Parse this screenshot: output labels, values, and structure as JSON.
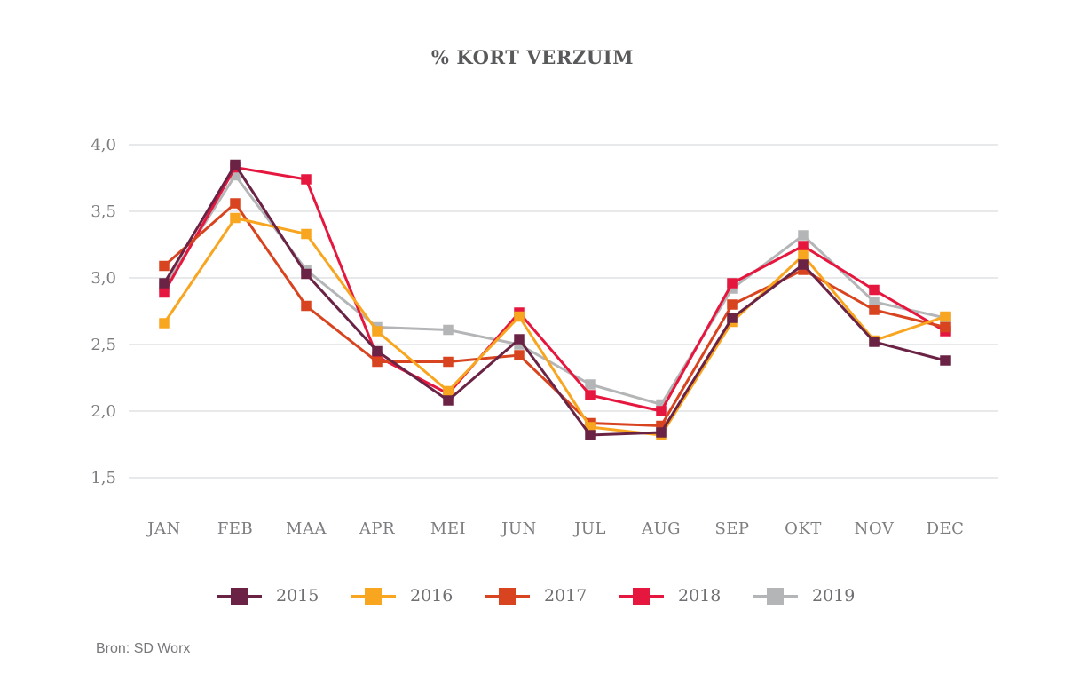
{
  "title": "% KORT VERZUIM",
  "source": "Bron: SD Worx",
  "colors": {
    "title_text": "#58595b",
    "axis_label": "#7c7d80",
    "gridline": "#d1d3d4",
    "legend_label": "#6f7073",
    "source_text": "#77787b",
    "background": "#ffffff"
  },
  "chart_data": {
    "type": "line",
    "title": "% KORT VERZUIM",
    "xlabel": "",
    "ylabel": "",
    "grid": "horizontal",
    "legend_position": "bottom",
    "marker": "square",
    "ylim": [
      1.5,
      4.0
    ],
    "categories": [
      "JAN",
      "FEB",
      "MAA",
      "APR",
      "MEI",
      "JUN",
      "JUL",
      "AUG",
      "SEP",
      "OKT",
      "NOV",
      "DEC"
    ],
    "yticks": [
      {
        "v": 4.0,
        "label": "4,0"
      },
      {
        "v": 3.5,
        "label": "3,5"
      },
      {
        "v": 3.0,
        "label": "3,0"
      },
      {
        "v": 2.5,
        "label": "2,5"
      },
      {
        "v": 2.0,
        "label": "2,0"
      },
      {
        "v": 1.5,
        "label": "1,5"
      }
    ],
    "series": [
      {
        "name": "2015",
        "color": "#6a2344",
        "values": [
          2.96,
          3.85,
          3.03,
          2.45,
          2.08,
          2.54,
          1.82,
          1.84,
          2.7,
          3.1,
          2.52,
          2.38
        ]
      },
      {
        "name": "2016",
        "color": "#f8a51f",
        "values": [
          2.66,
          3.45,
          3.33,
          2.6,
          2.15,
          2.71,
          1.88,
          1.82,
          2.67,
          3.17,
          2.53,
          2.71
        ]
      },
      {
        "name": "2017",
        "color": "#d7441f",
        "values": [
          3.09,
          3.56,
          2.79,
          2.37,
          2.37,
          2.42,
          1.91,
          1.89,
          2.8,
          3.06,
          2.76,
          2.63
        ]
      },
      {
        "name": "2018",
        "color": "#e6173e",
        "values": [
          2.89,
          3.83,
          3.74,
          2.41,
          2.13,
          2.74,
          2.12,
          2.0,
          2.96,
          3.24,
          2.91,
          2.6
        ]
      },
      {
        "name": "2019",
        "color": "#b4b5b7",
        "values": [
          2.93,
          3.77,
          3.06,
          2.63,
          2.61,
          2.5,
          2.2,
          2.05,
          2.92,
          3.32,
          2.82,
          2.7
        ]
      }
    ]
  }
}
